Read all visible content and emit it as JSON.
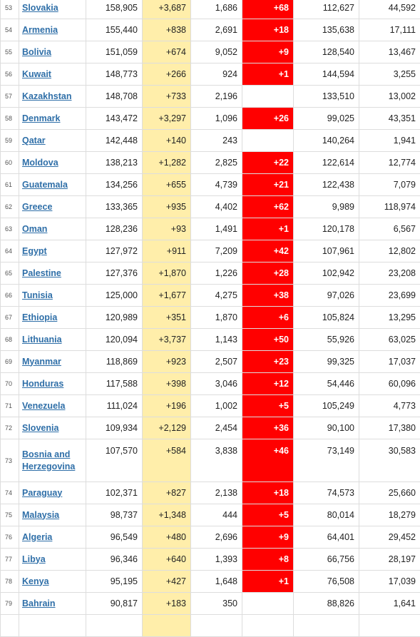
{
  "colors": {
    "new_cases_bg": "#ffeeaa",
    "new_deaths_bg": "#ff0000",
    "link": "#2f6fa8"
  },
  "rows": [
    {
      "rank": "53",
      "country": "Slovakia",
      "total_cases": "158,905",
      "new_cases": "+3,687",
      "total_deaths": "1,686",
      "new_deaths": "+68",
      "total_recovered": "112,627",
      "active_cases": "44,592"
    },
    {
      "rank": "54",
      "country": "Armenia",
      "total_cases": "155,440",
      "new_cases": "+838",
      "total_deaths": "2,691",
      "new_deaths": "+18",
      "total_recovered": "135,638",
      "active_cases": "17,111"
    },
    {
      "rank": "55",
      "country": "Bolivia",
      "total_cases": "151,059",
      "new_cases": "+674",
      "total_deaths": "9,052",
      "new_deaths": "+9",
      "total_recovered": "128,540",
      "active_cases": "13,467"
    },
    {
      "rank": "56",
      "country": "Kuwait",
      "total_cases": "148,773",
      "new_cases": "+266",
      "total_deaths": "924",
      "new_deaths": "+1",
      "total_recovered": "144,594",
      "active_cases": "3,255"
    },
    {
      "rank": "57",
      "country": "Kazakhstan",
      "total_cases": "148,708",
      "new_cases": "+733",
      "total_deaths": "2,196",
      "new_deaths": "",
      "total_recovered": "133,510",
      "active_cases": "13,002"
    },
    {
      "rank": "58",
      "country": "Denmark",
      "total_cases": "143,472",
      "new_cases": "+3,297",
      "total_deaths": "1,096",
      "new_deaths": "+26",
      "total_recovered": "99,025",
      "active_cases": "43,351"
    },
    {
      "rank": "59",
      "country": "Qatar",
      "total_cases": "142,448",
      "new_cases": "+140",
      "total_deaths": "243",
      "new_deaths": "",
      "total_recovered": "140,264",
      "active_cases": "1,941"
    },
    {
      "rank": "60",
      "country": "Moldova",
      "total_cases": "138,213",
      "new_cases": "+1,282",
      "total_deaths": "2,825",
      "new_deaths": "+22",
      "total_recovered": "122,614",
      "active_cases": "12,774"
    },
    {
      "rank": "61",
      "country": "Guatemala",
      "total_cases": "134,256",
      "new_cases": "+655",
      "total_deaths": "4,739",
      "new_deaths": "+21",
      "total_recovered": "122,438",
      "active_cases": "7,079"
    },
    {
      "rank": "62",
      "country": "Greece",
      "total_cases": "133,365",
      "new_cases": "+935",
      "total_deaths": "4,402",
      "new_deaths": "+62",
      "total_recovered": "9,989",
      "active_cases": "118,974"
    },
    {
      "rank": "63",
      "country": "Oman",
      "total_cases": "128,236",
      "new_cases": "+93",
      "total_deaths": "1,491",
      "new_deaths": "+1",
      "total_recovered": "120,178",
      "active_cases": "6,567"
    },
    {
      "rank": "64",
      "country": "Egypt",
      "total_cases": "127,972",
      "new_cases": "+911",
      "total_deaths": "7,209",
      "new_deaths": "+42",
      "total_recovered": "107,961",
      "active_cases": "12,802"
    },
    {
      "rank": "65",
      "country": "Palestine",
      "total_cases": "127,376",
      "new_cases": "+1,870",
      "total_deaths": "1,226",
      "new_deaths": "+28",
      "total_recovered": "102,942",
      "active_cases": "23,208"
    },
    {
      "rank": "66",
      "country": "Tunisia",
      "total_cases": "125,000",
      "new_cases": "+1,677",
      "total_deaths": "4,275",
      "new_deaths": "+38",
      "total_recovered": "97,026",
      "active_cases": "23,699"
    },
    {
      "rank": "67",
      "country": "Ethiopia",
      "total_cases": "120,989",
      "new_cases": "+351",
      "total_deaths": "1,870",
      "new_deaths": "+6",
      "total_recovered": "105,824",
      "active_cases": "13,295"
    },
    {
      "rank": "68",
      "country": "Lithuania",
      "total_cases": "120,094",
      "new_cases": "+3,737",
      "total_deaths": "1,143",
      "new_deaths": "+50",
      "total_recovered": "55,926",
      "active_cases": "63,025"
    },
    {
      "rank": "69",
      "country": "Myanmar",
      "total_cases": "118,869",
      "new_cases": "+923",
      "total_deaths": "2,507",
      "new_deaths": "+23",
      "total_recovered": "99,325",
      "active_cases": "17,037"
    },
    {
      "rank": "70",
      "country": "Honduras",
      "total_cases": "117,588",
      "new_cases": "+398",
      "total_deaths": "3,046",
      "new_deaths": "+12",
      "total_recovered": "54,446",
      "active_cases": "60,096"
    },
    {
      "rank": "71",
      "country": "Venezuela",
      "total_cases": "111,024",
      "new_cases": "+196",
      "total_deaths": "1,002",
      "new_deaths": "+5",
      "total_recovered": "105,249",
      "active_cases": "4,773"
    },
    {
      "rank": "72",
      "country": "Slovenia",
      "total_cases": "109,934",
      "new_cases": "+2,129",
      "total_deaths": "2,454",
      "new_deaths": "+36",
      "total_recovered": "90,100",
      "active_cases": "17,380"
    },
    {
      "rank": "73",
      "country": "Bosnia and Herzegovina",
      "total_cases": "107,570",
      "new_cases": "+584",
      "total_deaths": "3,838",
      "new_deaths": "+46",
      "total_recovered": "73,149",
      "active_cases": "30,583",
      "tall": true
    },
    {
      "rank": "74",
      "country": "Paraguay",
      "total_cases": "102,371",
      "new_cases": "+827",
      "total_deaths": "2,138",
      "new_deaths": "+18",
      "total_recovered": "74,573",
      "active_cases": "25,660"
    },
    {
      "rank": "75",
      "country": "Malaysia",
      "total_cases": "98,737",
      "new_cases": "+1,348",
      "total_deaths": "444",
      "new_deaths": "+5",
      "total_recovered": "80,014",
      "active_cases": "18,279"
    },
    {
      "rank": "76",
      "country": "Algeria",
      "total_cases": "96,549",
      "new_cases": "+480",
      "total_deaths": "2,696",
      "new_deaths": "+9",
      "total_recovered": "64,401",
      "active_cases": "29,452"
    },
    {
      "rank": "77",
      "country": "Libya",
      "total_cases": "96,346",
      "new_cases": "+640",
      "total_deaths": "1,393",
      "new_deaths": "+8",
      "total_recovered": "66,756",
      "active_cases": "28,197"
    },
    {
      "rank": "78",
      "country": "Kenya",
      "total_cases": "95,195",
      "new_cases": "+427",
      "total_deaths": "1,648",
      "new_deaths": "+1",
      "total_recovered": "76,508",
      "active_cases": "17,039"
    },
    {
      "rank": "79",
      "country": "Bahrain",
      "total_cases": "90,817",
      "new_cases": "+183",
      "total_deaths": "350",
      "new_deaths": "",
      "total_recovered": "88,826",
      "active_cases": "1,641"
    },
    {
      "rank": "",
      "country": "",
      "total_cases": "",
      "new_cases": "",
      "total_deaths": "",
      "new_deaths": "",
      "total_recovered": "",
      "active_cases": ""
    }
  ]
}
